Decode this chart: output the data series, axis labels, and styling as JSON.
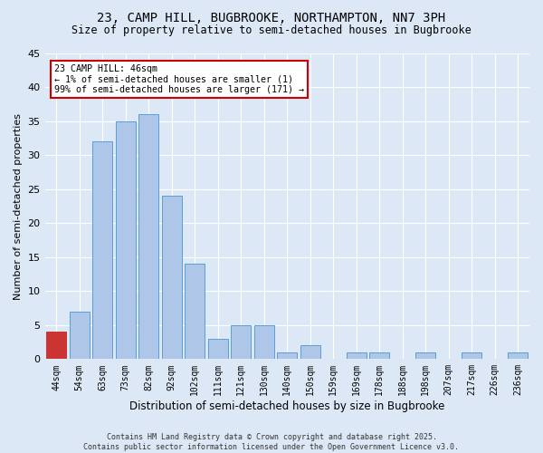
{
  "title": "23, CAMP HILL, BUGBROOKE, NORTHAMPTON, NN7 3PH",
  "subtitle": "Size of property relative to semi-detached houses in Bugbrooke",
  "xlabel": "Distribution of semi-detached houses by size in Bugbrooke",
  "ylabel": "Number of semi-detached properties",
  "categories": [
    "44sqm",
    "54sqm",
    "63sqm",
    "73sqm",
    "82sqm",
    "92sqm",
    "102sqm",
    "111sqm",
    "121sqm",
    "130sqm",
    "140sqm",
    "150sqm",
    "159sqm",
    "169sqm",
    "178sqm",
    "188sqm",
    "198sqm",
    "207sqm",
    "217sqm",
    "226sqm",
    "236sqm"
  ],
  "values": [
    4,
    7,
    32,
    35,
    36,
    24,
    14,
    3,
    5,
    5,
    1,
    2,
    0,
    1,
    1,
    0,
    1,
    0,
    1,
    0,
    1
  ],
  "bar_color": "#aec6e8",
  "bar_edge_color": "#5a9fd4",
  "highlight_bar_index": 0,
  "highlight_bar_color": "#cc3333",
  "highlight_bar_edge_color": "#cc3333",
  "annotation_text": "23 CAMP HILL: 46sqm\n← 1% of semi-detached houses are smaller (1)\n99% of semi-detached houses are larger (171) →",
  "annotation_box_color": "#ffffff",
  "annotation_box_edge_color": "#cc0000",
  "ylim": [
    0,
    45
  ],
  "yticks": [
    0,
    5,
    10,
    15,
    20,
    25,
    30,
    35,
    40,
    45
  ],
  "background_color": "#dce8f5",
  "plot_background_color": "#dce8f5",
  "grid_color": "#ffffff",
  "title_fontsize": 10,
  "subtitle_fontsize": 8.5,
  "footer_line1": "Contains HM Land Registry data © Crown copyright and database right 2025.",
  "footer_line2": "Contains public sector information licensed under the Open Government Licence v3.0."
}
